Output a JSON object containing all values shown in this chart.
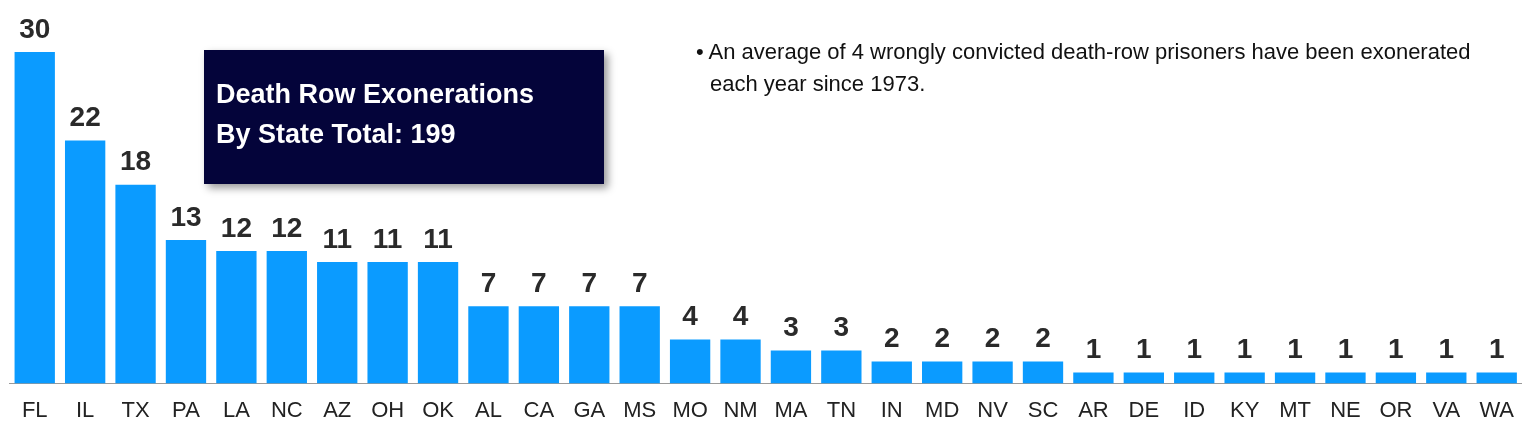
{
  "chart_data": {
    "type": "bar",
    "title": "Death Row Exonerations By State Total: 199",
    "annotations": [
      "• An average of 4 wrongly convicted death-row prisoners have been exonerated each year since 1973."
    ],
    "categories": [
      "FL",
      "IL",
      "TX",
      "PA",
      "LA",
      "NC",
      "AZ",
      "OH",
      "OK",
      "AL",
      "CA",
      "GA",
      "MS",
      "MO",
      "NM",
      "MA",
      "TN",
      "IN",
      "MD",
      "NV",
      "SC",
      "AR",
      "DE",
      "ID",
      "KY",
      "MT",
      "NE",
      "OR",
      "VA",
      "WA"
    ],
    "values": [
      30,
      22,
      18,
      13,
      12,
      12,
      11,
      11,
      11,
      7,
      7,
      7,
      7,
      4,
      4,
      3,
      3,
      2,
      2,
      2,
      2,
      1,
      1,
      1,
      1,
      1,
      1,
      1,
      1,
      1
    ],
    "color": "#0b9bff",
    "data_labels": true,
    "grid": false,
    "legend": false
  }
}
